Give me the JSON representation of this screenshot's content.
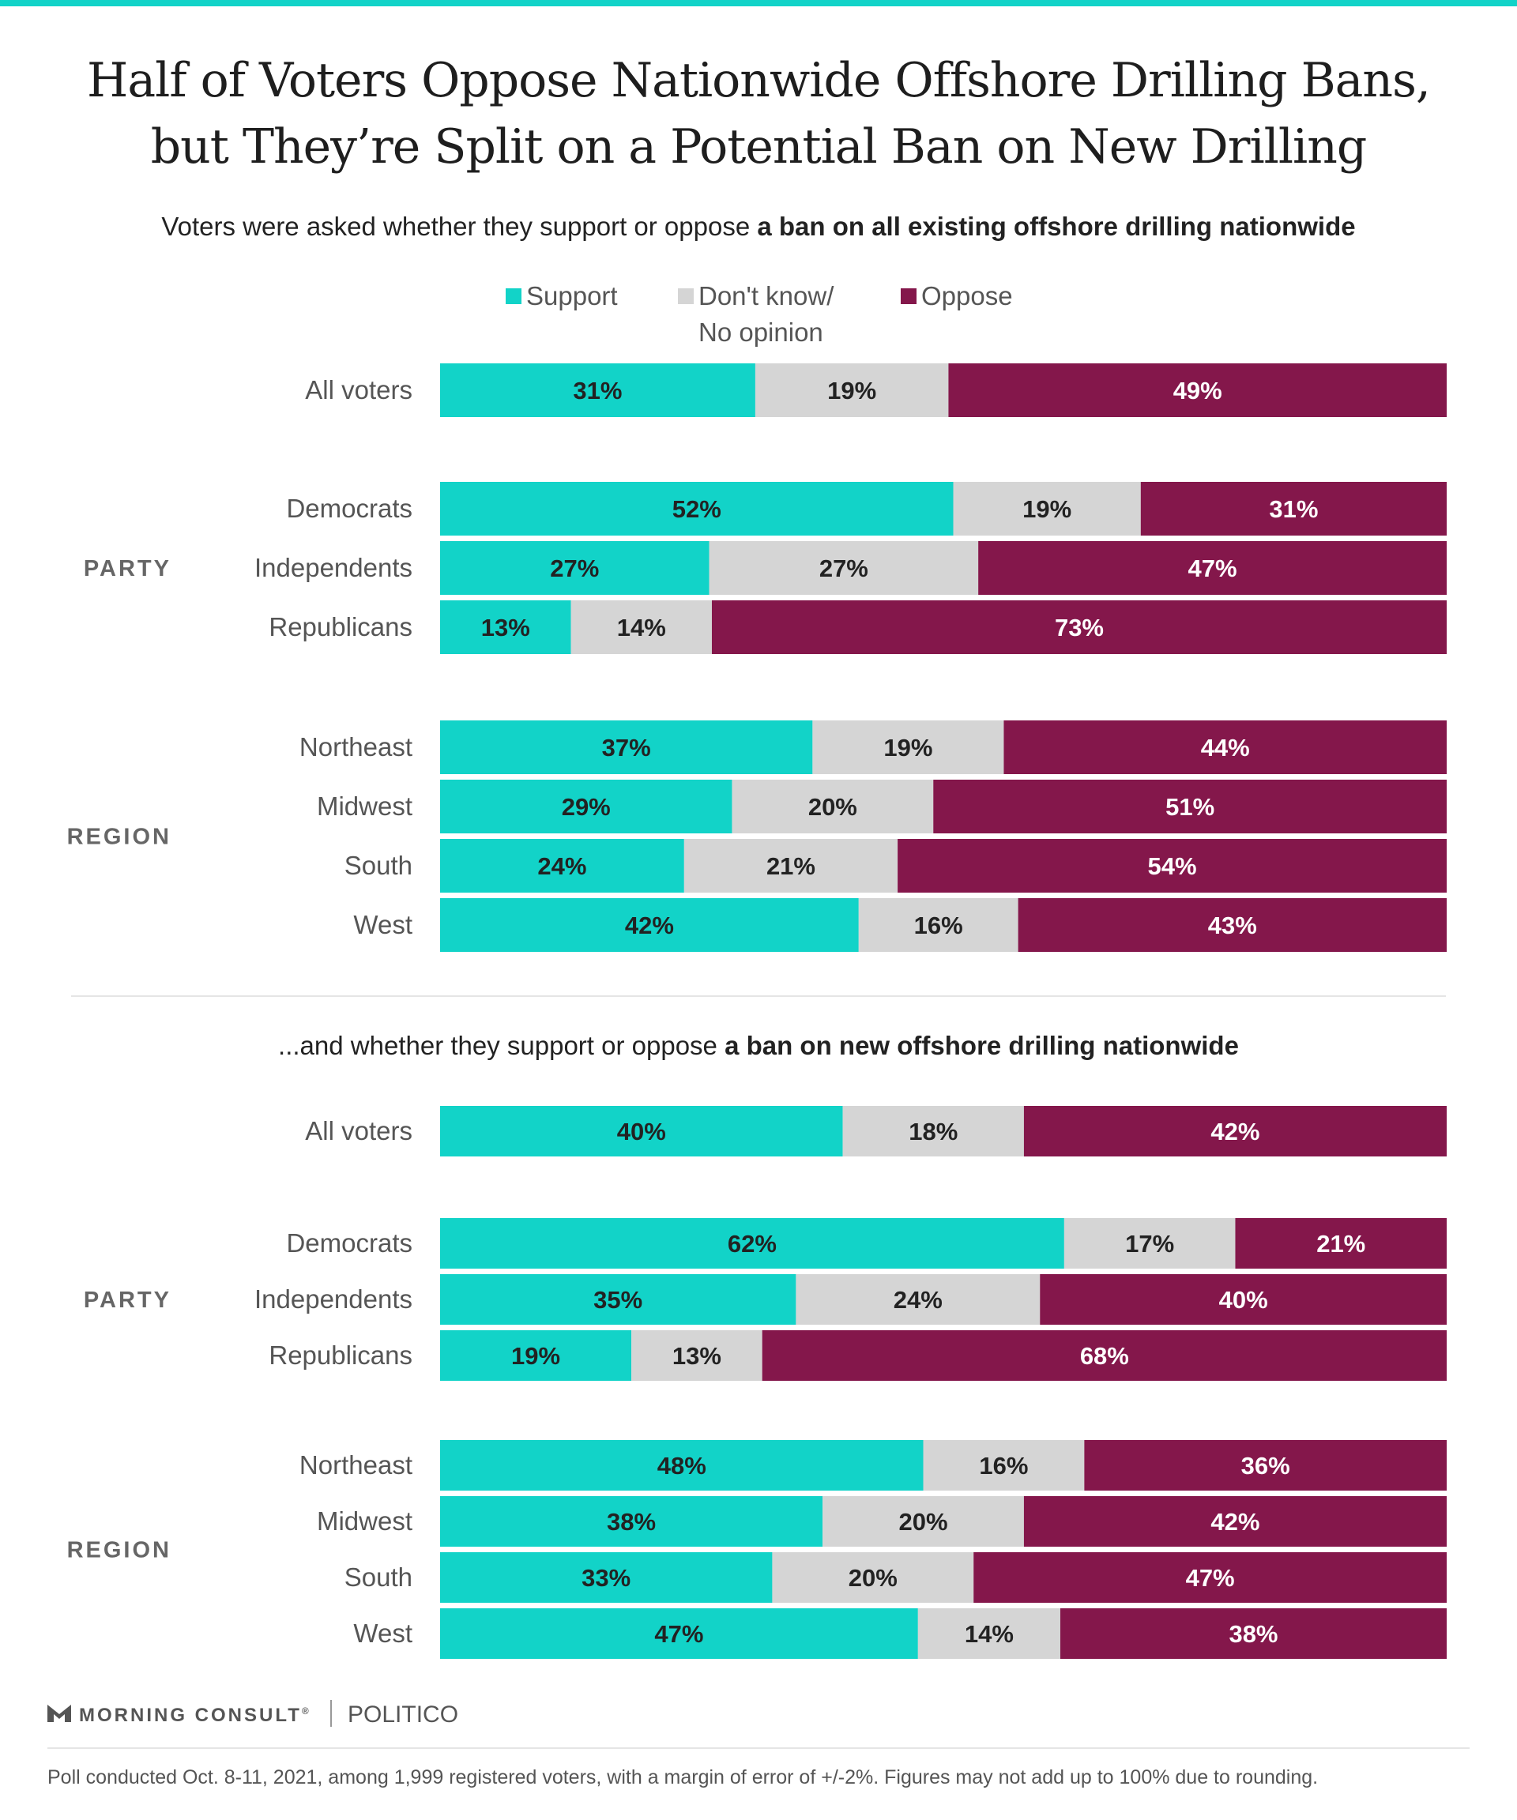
{
  "title_lines": [
    "Half of Voters Oppose Nationwide Offshore Drilling Bans,",
    "but They’re Split on a Potential Ban on New Drilling"
  ],
  "subtitles": [
    {
      "plain": "Voters were asked whether they support or oppose ",
      "bold": "a ban on all existing offshore drilling nationwide"
    },
    {
      "plain": "...and whether they support or oppose ",
      "bold": "a ban on new offshore drilling nationwide"
    }
  ],
  "legend": {
    "support": "Support",
    "dont_know_line1": "Don't know/",
    "dont_know_line2": "No opinion",
    "oppose": "Oppose"
  },
  "colors": {
    "support": "#12d3c8",
    "dont_know": "#d5d5d5",
    "oppose": "#84174b",
    "label_dark": "#222222",
    "label_light": "#ffffff",
    "row_label": "#555555",
    "group_label": "#666666"
  },
  "chart_data": [
    {
      "type": "bar",
      "orientation": "horizontal",
      "stacked": true,
      "series_names": [
        "Support",
        "Don't know/No opinion",
        "Oppose"
      ],
      "rows": [
        {
          "group": "",
          "label": "All voters",
          "values": [
            31,
            19,
            49
          ]
        },
        {
          "group": "PARTY",
          "label": "Democrats",
          "values": [
            52,
            19,
            31
          ]
        },
        {
          "group": "PARTY",
          "label": "Independents",
          "values": [
            27,
            27,
            47
          ]
        },
        {
          "group": "PARTY",
          "label": "Republicans",
          "values": [
            13,
            14,
            73
          ]
        },
        {
          "group": "REGION",
          "label": "Northeast",
          "values": [
            37,
            19,
            44
          ]
        },
        {
          "group": "REGION",
          "label": "Midwest",
          "values": [
            29,
            20,
            51
          ]
        },
        {
          "group": "REGION",
          "label": "South",
          "values": [
            24,
            21,
            54
          ]
        },
        {
          "group": "REGION",
          "label": "West",
          "values": [
            42,
            16,
            43
          ]
        }
      ],
      "value_suffix": "%"
    },
    {
      "type": "bar",
      "orientation": "horizontal",
      "stacked": true,
      "series_names": [
        "Support",
        "Don't know/No opinion",
        "Oppose"
      ],
      "rows": [
        {
          "group": "",
          "label": "All voters",
          "values": [
            40,
            18,
            42
          ]
        },
        {
          "group": "PARTY",
          "label": "Democrats",
          "values": [
            62,
            17,
            21
          ]
        },
        {
          "group": "PARTY",
          "label": "Independents",
          "values": [
            35,
            24,
            40
          ]
        },
        {
          "group": "PARTY",
          "label": "Republicans",
          "values": [
            19,
            13,
            68
          ]
        },
        {
          "group": "REGION",
          "label": "Northeast",
          "values": [
            48,
            16,
            36
          ]
        },
        {
          "group": "REGION",
          "label": "Midwest",
          "values": [
            38,
            20,
            42
          ]
        },
        {
          "group": "REGION",
          "label": "South",
          "values": [
            33,
            20,
            47
          ]
        },
        {
          "group": "REGION",
          "label": "West",
          "values": [
            47,
            14,
            38
          ]
        }
      ],
      "value_suffix": "%"
    }
  ],
  "footer": {
    "brand": "MORNING CONSULT",
    "brand_mark": "®",
    "partner": "POLITICO",
    "note": "Poll conducted Oct. 8-11, 2021, among 1,999 registered voters, with a margin of error of +/-2%. Figures may not add up to 100% due to rounding."
  }
}
